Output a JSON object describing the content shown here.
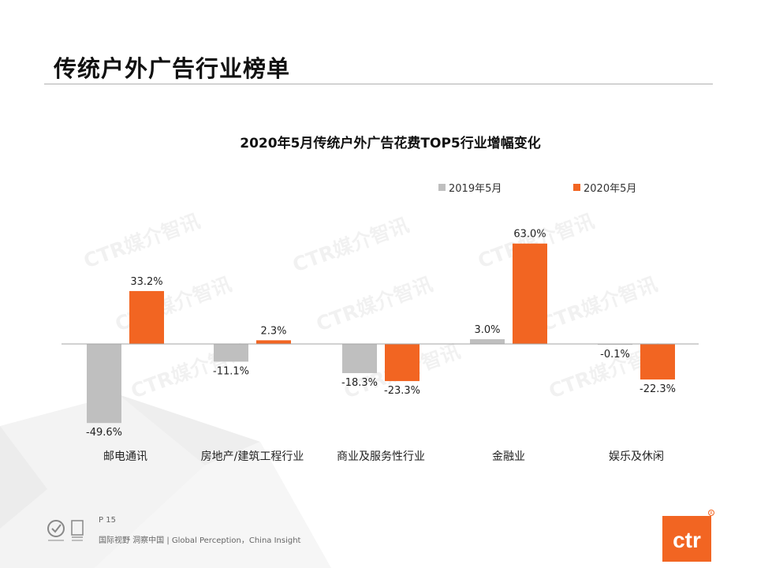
{
  "page": {
    "title": "传统户外广告行业榜单",
    "page_number": "P 15",
    "tagline": "国际视野  洞察中国 |  Global Perception，China Insight",
    "watermark": "CTR媒介智讯",
    "logo_text": "ctr"
  },
  "colors": {
    "series_2019": "#bfbfbf",
    "series_2020": "#f26522",
    "axis": "#a6a6a6",
    "brand": "#f26522"
  },
  "chart_data": {
    "type": "bar",
    "title": "2020年5月传统户外广告花费TOP5行业增幅变化",
    "categories": [
      "邮电通讯",
      "房地产/建筑工程行业",
      "商业及服务性行业",
      "金融业",
      "娱乐及休闲"
    ],
    "series": [
      {
        "name": "2019年5月",
        "values": [
          -49.6,
          -11.1,
          -18.3,
          3.0,
          -0.1
        ],
        "labels": [
          "-49.6%",
          "-11.1%",
          "-18.3%",
          "3.0%",
          "-0.1%"
        ]
      },
      {
        "name": "2020年5月",
        "values": [
          33.2,
          2.3,
          -23.3,
          63.0,
          -22.3
        ],
        "labels": [
          "33.2%",
          "2.3%",
          "-23.3%",
          "63.0%",
          "-22.3%"
        ]
      }
    ],
    "legend_position": "top-right",
    "unit": "%",
    "xlabel": "",
    "ylabel": ""
  }
}
